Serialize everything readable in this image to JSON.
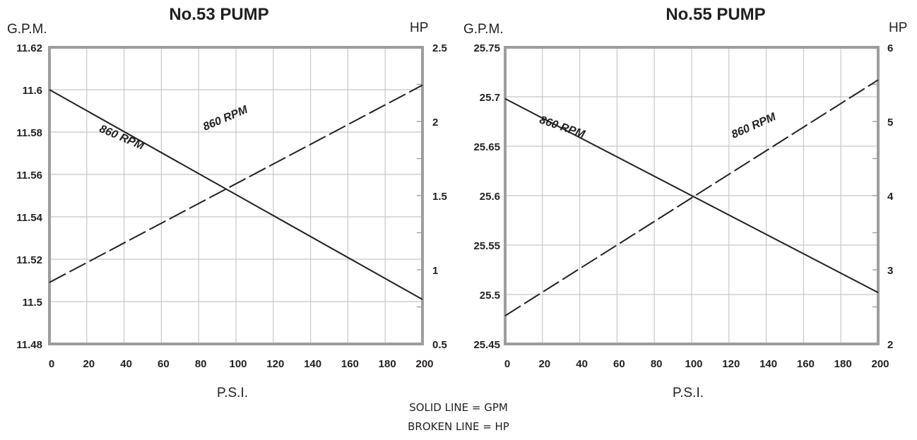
{
  "chart_data": [
    {
      "type": "line",
      "title": "No.53 PUMP",
      "xlabel": "P.S.I.",
      "ylabel_left": "G.P.M.",
      "ylabel_right": "HP",
      "xlim": [
        0,
        200
      ],
      "ylim_left": [
        11.48,
        11.62
      ],
      "ylim_right": [
        0.5,
        2.5
      ],
      "x_ticks": [
        "0",
        "20",
        "40",
        "60",
        "80",
        "100",
        "120",
        "140",
        "160",
        "180",
        "200"
      ],
      "y_left_ticks": [
        "11.48",
        "11.5",
        "11.52",
        "11.54",
        "11.56",
        "11.58",
        "11.6",
        "11.62"
      ],
      "y_right_ticks": [
        "0.5",
        "1",
        "1.5",
        "2",
        "2.5"
      ],
      "grid": true,
      "series": [
        {
          "axis": "left",
          "style": "solid",
          "x": [
            0,
            200
          ],
          "y": [
            11.6,
            11.501
          ]
        },
        {
          "axis": "right",
          "style": "dashed",
          "x": [
            0,
            200
          ],
          "y": [
            0.915,
            2.245
          ]
        }
      ],
      "annotations": [
        {
          "text": "860 RPM",
          "x": 38,
          "y": 11.576,
          "axis": "left",
          "angle": 23
        },
        {
          "text": "860 RPM",
          "x": 95,
          "y": 2.0,
          "axis": "right",
          "angle": -23
        }
      ]
    },
    {
      "type": "line",
      "title": "No.55 PUMP",
      "xlabel": "P.S.I.",
      "ylabel_left": "G.P.M.",
      "ylabel_right": "HP",
      "xlim": [
        0,
        200
      ],
      "ylim_left": [
        25.45,
        25.75
      ],
      "ylim_right": [
        2,
        6
      ],
      "x_ticks": [
        "0",
        "20",
        "40",
        "60",
        "80",
        "100",
        "120",
        "140",
        "160",
        "180",
        "200"
      ],
      "y_left_ticks": [
        "25.45",
        "25.5",
        "25.55",
        "25.6",
        "25.65",
        "25.7",
        "25.75"
      ],
      "y_right_ticks": [
        "2",
        "3",
        "4",
        "5",
        "6"
      ],
      "grid": true,
      "series": [
        {
          "axis": "left",
          "style": "solid",
          "x": [
            0,
            200
          ],
          "y": [
            25.698,
            25.502
          ]
        },
        {
          "axis": "right",
          "style": "dashed",
          "x": [
            0,
            200
          ],
          "y": [
            2.38,
            5.56
          ]
        }
      ],
      "annotations": [
        {
          "text": "860 RPM",
          "x": 30,
          "y": 25.666,
          "axis": "left",
          "angle": 19
        },
        {
          "text": "860 RPM",
          "x": 134,
          "y": 4.9,
          "axis": "right",
          "angle": -24
        }
      ]
    }
  ],
  "legend": {
    "line1": "SOLID LINE = GPM",
    "line2": "BROKEN LINE = HP"
  }
}
